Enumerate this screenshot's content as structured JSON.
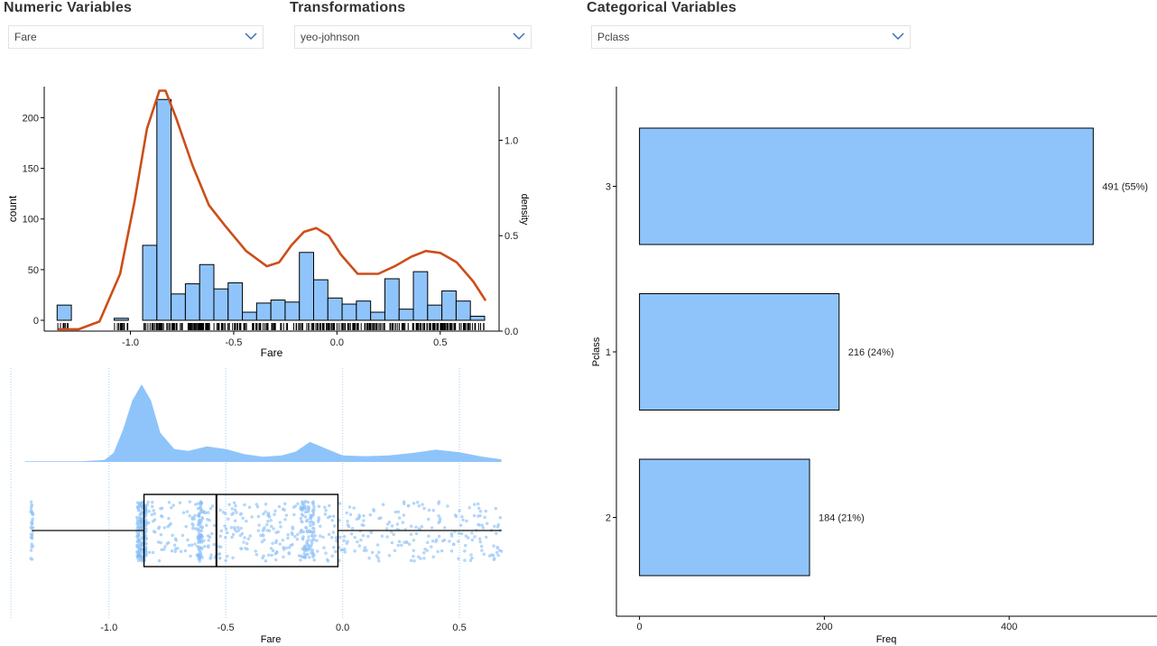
{
  "controls": {
    "numeric": {
      "title": "Numeric Variables",
      "value": "Fare"
    },
    "transform": {
      "title": "Transformations",
      "value": "yeo-johnson"
    },
    "categorical": {
      "title": "Categorical Variables",
      "value": "Pclass"
    }
  },
  "colors": {
    "bar_fill": "#8fc4fb",
    "density_line": "#cc4e1a",
    "point": "#6aaef5",
    "axis": "#000000",
    "chevron": "#3b6fb6"
  },
  "icons": {
    "dropdown": "chevron-down-icon"
  },
  "chart_data": [
    {
      "type": "histogram",
      "xlabel": "Fare",
      "ylabel": "count",
      "y2label": "density",
      "xlim": [
        -1.4,
        0.75
      ],
      "ylim": [
        0,
        220
      ],
      "y2lim": [
        0,
        1.3
      ],
      "xticks": [
        -1.0,
        -0.5,
        0.0,
        0.5
      ],
      "xtick_labels": [
        "-1.0",
        "-0.5",
        "0.0",
        "0.5"
      ],
      "yticks": [
        0,
        50,
        100,
        150,
        200
      ],
      "ytick_labels": [
        "0",
        "50",
        "100",
        "150",
        "200"
      ],
      "y2ticks": [
        0.0,
        0.5,
        1.0
      ],
      "y2tick_labels": [
        "0.0",
        "0.5",
        "1.0"
      ],
      "bin_edges": [
        -1.355,
        -1.286,
        -1.217,
        -1.148,
        -1.079,
        -1.01,
        -0.941,
        -0.872,
        -0.803,
        -0.734,
        -0.665,
        -0.596,
        -0.527,
        -0.458,
        -0.389,
        -0.32,
        -0.251,
        -0.182,
        -0.113,
        -0.044,
        0.025,
        0.094,
        0.163,
        0.232,
        0.301,
        0.37,
        0.439,
        0.508,
        0.577,
        0.646,
        0.715
      ],
      "counts": [
        15,
        0,
        0,
        0,
        2,
        0,
        74,
        218,
        26,
        36,
        55,
        31,
        37,
        8,
        17,
        20,
        18,
        67,
        40,
        22,
        16,
        19,
        8,
        41,
        11,
        48,
        15,
        29,
        19,
        4
      ],
      "density": {
        "x": [
          -1.35,
          -1.25,
          -1.15,
          -1.05,
          -0.98,
          -0.92,
          -0.86,
          -0.83,
          -0.78,
          -0.7,
          -0.62,
          -0.54,
          -0.44,
          -0.34,
          -0.28,
          -0.22,
          -0.16,
          -0.1,
          -0.04,
          0.02,
          0.1,
          0.2,
          0.28,
          0.36,
          0.43,
          0.5,
          0.58,
          0.66,
          0.72
        ],
        "y": [
          0.01,
          0.01,
          0.05,
          0.3,
          0.68,
          1.06,
          1.26,
          1.26,
          1.12,
          0.87,
          0.66,
          0.55,
          0.42,
          0.34,
          0.36,
          0.45,
          0.52,
          0.54,
          0.5,
          0.4,
          0.3,
          0.3,
          0.34,
          0.39,
          0.42,
          0.41,
          0.36,
          0.26,
          0.16
        ]
      }
    },
    {
      "type": "raincloud",
      "xlabel": "Fare",
      "xlim": [
        -1.42,
        0.72
      ],
      "xticks": [
        -1.0,
        -0.5,
        0.0,
        0.5
      ],
      "xtick_labels": [
        "-1.0",
        "-0.5",
        "0.0",
        "0.5"
      ],
      "box": {
        "min": -1.33,
        "q1": -0.85,
        "median": -0.54,
        "q3": -0.02,
        "max": 0.68
      },
      "density": {
        "x": [
          -1.36,
          -1.25,
          -1.12,
          -1.02,
          -0.98,
          -0.94,
          -0.9,
          -0.86,
          -0.82,
          -0.78,
          -0.72,
          -0.66,
          -0.58,
          -0.5,
          -0.42,
          -0.34,
          -0.26,
          -0.2,
          -0.14,
          -0.08,
          0.0,
          0.1,
          0.2,
          0.3,
          0.4,
          0.5,
          0.6,
          0.68
        ],
        "y": [
          0.01,
          0.01,
          0.01,
          0.03,
          0.14,
          0.5,
          0.95,
          1.2,
          0.95,
          0.45,
          0.2,
          0.17,
          0.24,
          0.2,
          0.12,
          0.08,
          0.1,
          0.16,
          0.31,
          0.22,
          0.1,
          0.09,
          0.1,
          0.14,
          0.19,
          0.15,
          0.08,
          0.04
        ]
      }
    },
    {
      "type": "bar",
      "orientation": "horizontal",
      "xlabel": "Freq",
      "ylabel": "Pclass",
      "categories": [
        "3",
        "1",
        "2"
      ],
      "values": [
        491,
        216,
        184
      ],
      "data_labels": [
        "491 (55%)",
        "216 (24%)",
        "184 (21%)"
      ],
      "xlim": [
        -25,
        560
      ],
      "xticks": [
        0,
        200,
        400
      ],
      "xtick_labels": [
        "0",
        "200",
        "400"
      ]
    }
  ]
}
